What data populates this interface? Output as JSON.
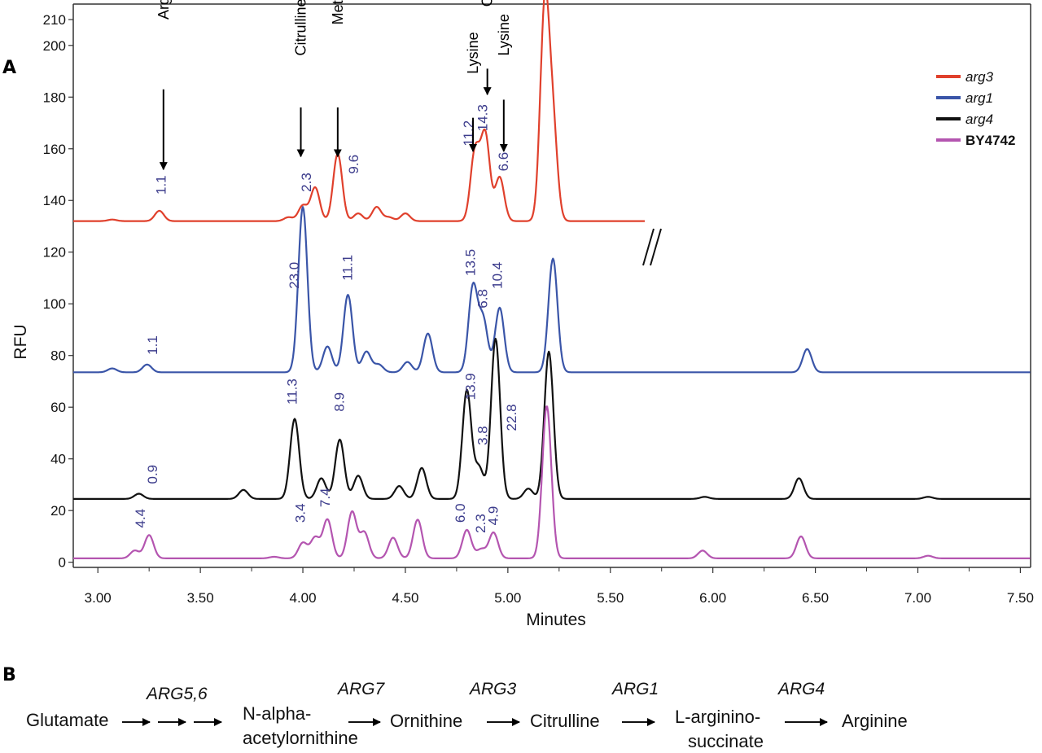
{
  "panel_a_letter": "A",
  "panel_b_letter": "B",
  "chart_data": {
    "type": "line",
    "xlabel": "Minutes",
    "ylabel": "RFU",
    "xlim": [
      2.88,
      7.55
    ],
    "ylim": [
      -2,
      216
    ],
    "x_ticks": [
      "3.00",
      "3.50",
      "4.00",
      "4.50",
      "5.00",
      "5.50",
      "6.00",
      "6.50",
      "7.00",
      "7.50"
    ],
    "y_ticks": [
      "0",
      "20",
      "40",
      "60",
      "80",
      "100",
      "120",
      "140",
      "160",
      "180",
      "200",
      "210"
    ],
    "legend_position": "top-right",
    "series": [
      {
        "name": "arg3",
        "italic": true,
        "color": "#e0402c",
        "baseline": 132,
        "x_end": 5.67,
        "peaks": [
          [
            3.07,
            0.6
          ],
          [
            3.3,
            4
          ],
          [
            3.93,
            1.5
          ],
          [
            4.0,
            6
          ],
          [
            4.06,
            13
          ],
          [
            4.17,
            26
          ],
          [
            4.27,
            3
          ],
          [
            4.36,
            5.5
          ],
          [
            4.42,
            1.5
          ],
          [
            4.5,
            3
          ],
          [
            4.84,
            27
          ],
          [
            4.89,
            33
          ],
          [
            4.96,
            17
          ],
          [
            5.18,
            82
          ],
          [
            5.22,
            35
          ]
        ]
      },
      {
        "name": "arg1",
        "italic": true,
        "color": "#3a55a8",
        "baseline": 73.5,
        "x_end": 7.55,
        "peaks": [
          [
            3.07,
            1.5
          ],
          [
            3.24,
            3
          ],
          [
            4.0,
            64
          ],
          [
            4.12,
            10
          ],
          [
            4.22,
            30
          ],
          [
            4.31,
            8
          ],
          [
            4.37,
            3
          ],
          [
            4.51,
            4
          ],
          [
            4.61,
            15
          ],
          [
            4.83,
            33
          ],
          [
            4.88,
            20
          ],
          [
            4.96,
            25
          ],
          [
            5.22,
            44
          ],
          [
            6.46,
            9
          ]
        ]
      },
      {
        "name": "arg4",
        "italic": true,
        "color": "#111111",
        "baseline": 24.5,
        "x_end": 7.55,
        "peaks": [
          [
            3.2,
            2
          ],
          [
            3.71,
            3.5
          ],
          [
            3.96,
            31
          ],
          [
            4.09,
            8
          ],
          [
            4.18,
            23
          ],
          [
            4.27,
            9
          ],
          [
            4.47,
            5
          ],
          [
            4.58,
            12
          ],
          [
            4.8,
            42
          ],
          [
            4.86,
            12
          ],
          [
            4.94,
            62
          ],
          [
            5.1,
            4
          ],
          [
            5.2,
            57
          ],
          [
            5.96,
            0.8
          ],
          [
            6.42,
            8
          ],
          [
            7.05,
            0.8
          ]
        ]
      },
      {
        "name": "BY4742",
        "italic": false,
        "color": "#b455b0",
        "baseline": 1.5,
        "x_end": 7.55,
        "peaks": [
          [
            3.18,
            3
          ],
          [
            3.25,
            9
          ],
          [
            3.86,
            0.6
          ],
          [
            4.0,
            6
          ],
          [
            4.06,
            8
          ],
          [
            4.12,
            15
          ],
          [
            4.24,
            18
          ],
          [
            4.3,
            10
          ],
          [
            4.44,
            8
          ],
          [
            4.56,
            15
          ],
          [
            4.8,
            11
          ],
          [
            4.87,
            3.5
          ],
          [
            4.93,
            10
          ],
          [
            5.19,
            59
          ],
          [
            5.95,
            3
          ],
          [
            6.43,
            8.5
          ],
          [
            7.05,
            1
          ]
        ]
      }
    ],
    "peak_labels": [
      {
        "text": "1.1",
        "x": 3.33,
        "y": 146,
        "rotate": true
      },
      {
        "text": "2.3",
        "x": 4.04,
        "y": 147,
        "rotate": true
      },
      {
        "text": "9.6",
        "x": 4.27,
        "y": 154,
        "rotate": true
      },
      {
        "text": "11.2",
        "x": 4.83,
        "y": 166,
        "rotate": true
      },
      {
        "text": "14.3",
        "x": 4.9,
        "y": 172,
        "rotate": true
      },
      {
        "text": "6.6",
        "x": 5.0,
        "y": 155,
        "rotate": true
      },
      {
        "text": "23.0",
        "x": 3.98,
        "y": 111,
        "rotate": true
      },
      {
        "text": "11.1",
        "x": 4.24,
        "y": 114,
        "rotate": true
      },
      {
        "text": "13.5",
        "x": 4.84,
        "y": 116,
        "rotate": true
      },
      {
        "text": "6.8",
        "x": 4.9,
        "y": 102,
        "rotate": true
      },
      {
        "text": "10.4",
        "x": 4.97,
        "y": 111,
        "rotate": true
      },
      {
        "text": "1.1",
        "x": 3.29,
        "y": 84,
        "rotate": true
      },
      {
        "text": "11.3",
        "x": 3.97,
        "y": 66,
        "rotate": true
      },
      {
        "text": "8.9",
        "x": 4.2,
        "y": 62,
        "rotate": true
      },
      {
        "text": "13.9",
        "x": 4.84,
        "y": 68,
        "rotate": true
      },
      {
        "text": "3.8",
        "x": 4.9,
        "y": 49,
        "rotate": true
      },
      {
        "text": "22.8",
        "x": 5.04,
        "y": 56,
        "rotate": true
      },
      {
        "text": "0.9",
        "x": 3.29,
        "y": 34,
        "rotate": true
      },
      {
        "text": "4.4",
        "x": 3.23,
        "y": 17,
        "rotate": true
      },
      {
        "text": "3.4",
        "x": 4.01,
        "y": 19,
        "rotate": true
      },
      {
        "text": "7.4",
        "x": 4.13,
        "y": 25,
        "rotate": true
      },
      {
        "text": "6.0",
        "x": 4.79,
        "y": 19,
        "rotate": true
      },
      {
        "text": "2.3",
        "x": 4.89,
        "y": 15,
        "rotate": true
      },
      {
        "text": "4.9",
        "x": 4.95,
        "y": 18,
        "rotate": true
      }
    ],
    "annotations": [
      {
        "text": "Arginine",
        "x": 3.32,
        "label_y": 210,
        "arrow_from": 183,
        "arrow_to": 152
      },
      {
        "text": "Citrulline",
        "x": 3.99,
        "label_y": 196,
        "arrow_from": 176,
        "arrow_to": 157
      },
      {
        "text": "Methionine",
        "x": 4.17,
        "label_y": 208,
        "arrow_from": 176,
        "arrow_to": 157
      },
      {
        "text": "Lysine",
        "x": 4.83,
        "label_y": 189,
        "arrow_from": 172,
        "arrow_to": 159
      },
      {
        "text": "Ornithine",
        "x": 4.9,
        "label_y": 215,
        "arrow_from": 191,
        "arrow_to": 181
      },
      {
        "text": "Lysine",
        "x": 4.98,
        "label_y": 196,
        "arrow_from": 179,
        "arrow_to": 159
      }
    ]
  },
  "pathway": {
    "compounds": [
      "Glutamate",
      "N-alpha-",
      "acetylornithine",
      "Ornithine",
      "Citrulline",
      "L-arginino-",
      "succinate",
      "Arginine"
    ],
    "enzymes": [
      "ARG5,6",
      "ARG7",
      "ARG3",
      "ARG1",
      "ARG4"
    ]
  }
}
